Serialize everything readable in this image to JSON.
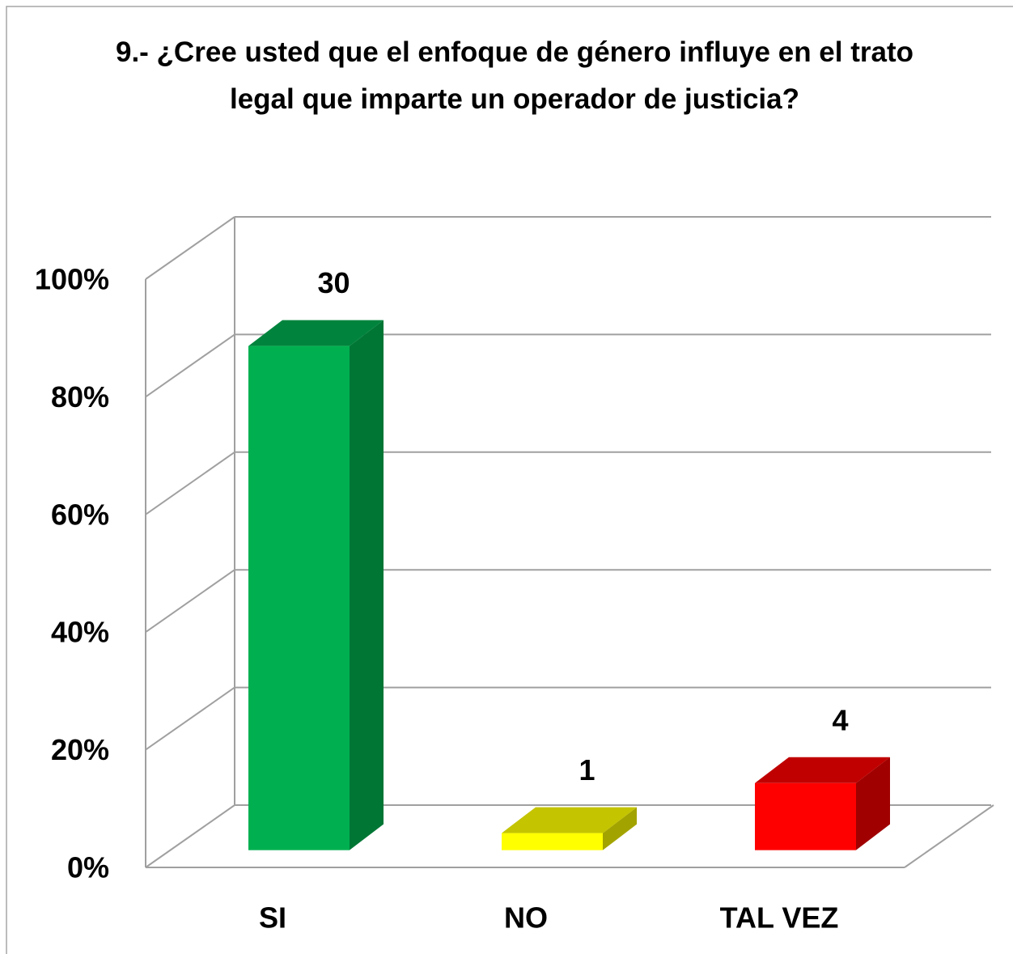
{
  "chart_data": {
    "type": "bar3d",
    "title": "9.- ¿Cree usted que el enfoque de género influye en el trato legal que imparte un operador de justicia?",
    "categories": [
      "SI",
      "NO",
      "TAL VEZ"
    ],
    "values": [
      85.7,
      2.9,
      11.4
    ],
    "counts": [
      30,
      1,
      4
    ],
    "colors": [
      {
        "front": "#00b050",
        "top": "#00843d",
        "side": "#007635"
      },
      {
        "front": "#ffff00",
        "top": "#c4c400",
        "side": "#a3a300"
      },
      {
        "front": "#ff0000",
        "top": "#c00000",
        "side": "#a00000"
      }
    ],
    "ylim": [
      0,
      100
    ],
    "yticks": [
      {
        "value": 0,
        "label": "0%"
      },
      {
        "value": 20,
        "label": "20%"
      },
      {
        "value": 40,
        "label": "40%"
      },
      {
        "value": 60,
        "label": "60%"
      },
      {
        "value": 80,
        "label": "80%"
      },
      {
        "value": 100,
        "label": "100%"
      }
    ],
    "grid": true
  }
}
